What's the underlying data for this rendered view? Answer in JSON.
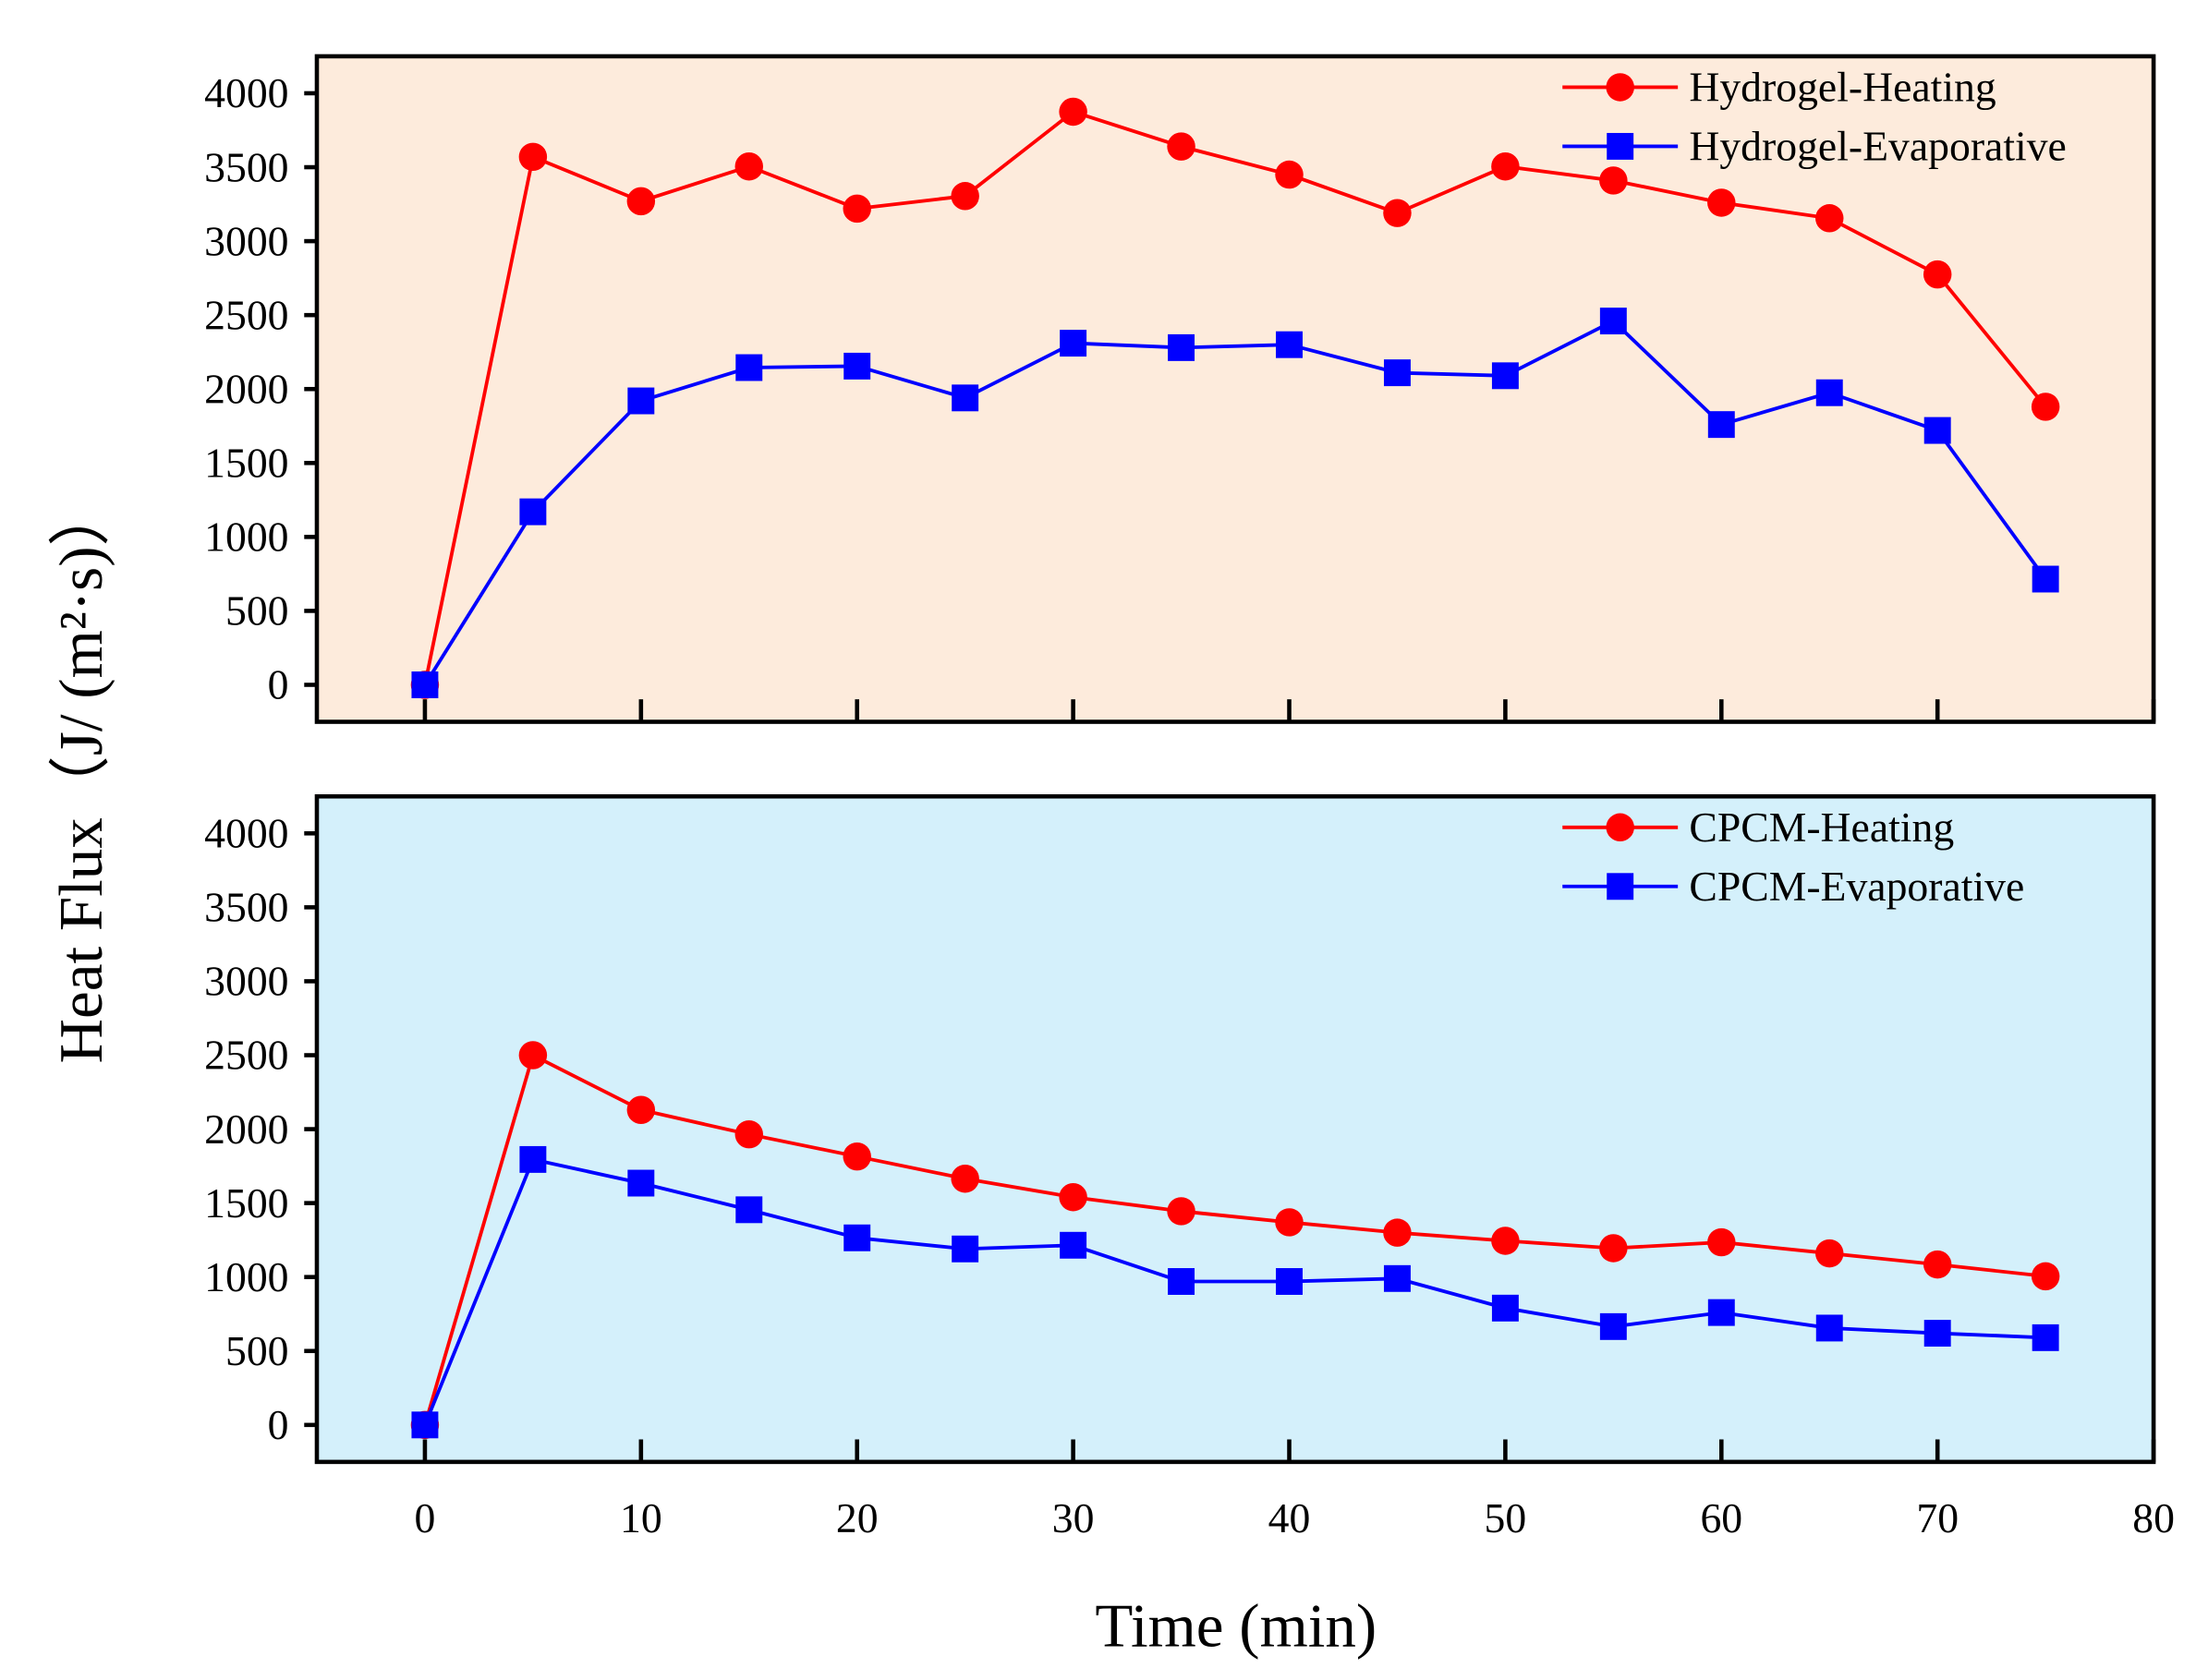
{
  "chart_data": [
    {
      "type": "line",
      "panel": "top",
      "background": "#fdebdc",
      "x": [
        0,
        5,
        10,
        15,
        20,
        25,
        30,
        35,
        40,
        45,
        50,
        55,
        60,
        65,
        70,
        75
      ],
      "series": [
        {
          "name": "Hydrogel-Heating",
          "color": "#ff0000",
          "marker": "circle",
          "values": [
            0,
            3570,
            3270,
            3505,
            3220,
            3305,
            3875,
            3640,
            3450,
            3190,
            3505,
            3410,
            3260,
            3155,
            2775,
            1880
          ]
        },
        {
          "name": "Hydrogel-Evaporative",
          "color": "#0000ff",
          "marker": "square",
          "values": [
            0,
            1170,
            1920,
            2145,
            2155,
            1940,
            2310,
            2280,
            2300,
            2110,
            2090,
            2460,
            1760,
            1975,
            1720,
            715
          ]
        }
      ],
      "yticks": [
        "0",
        "500",
        "1000",
        "1500",
        "2000",
        "2500",
        "3000",
        "3500",
        "4000"
      ],
      "ylim": [
        -250,
        4250
      ],
      "xlim": [
        -5,
        80
      ],
      "legend": "top-right"
    },
    {
      "type": "line",
      "panel": "bottom",
      "background": "#d4f0fb",
      "x": [
        0,
        5,
        10,
        15,
        20,
        25,
        30,
        35,
        40,
        45,
        50,
        55,
        60,
        65,
        70,
        75
      ],
      "series": [
        {
          "name": "CPCM-Heating",
          "color": "#ff0000",
          "marker": "circle",
          "values": [
            0,
            2500,
            2130,
            1965,
            1815,
            1665,
            1540,
            1445,
            1370,
            1300,
            1245,
            1195,
            1235,
            1160,
            1085,
            1005
          ]
        },
        {
          "name": "CPCM-Evaporative",
          "color": "#0000ff",
          "marker": "square",
          "values": [
            0,
            1795,
            1635,
            1455,
            1265,
            1190,
            1215,
            970,
            970,
            990,
            790,
            665,
            760,
            655,
            620,
            590
          ]
        }
      ],
      "yticks": [
        "0",
        "500",
        "1000",
        "1500",
        "2000",
        "2500",
        "3000",
        "3500",
        "4000"
      ],
      "xticks": [
        "0",
        "10",
        "20",
        "30",
        "40",
        "50",
        "60",
        "70",
        "80"
      ],
      "ylim": [
        -250,
        4250
      ],
      "xlim": [
        -5,
        80
      ],
      "legend": "top-right"
    }
  ],
  "xlabel": "Time (min)",
  "ylabel": "Heat Flux（J/ (m²·s)）"
}
